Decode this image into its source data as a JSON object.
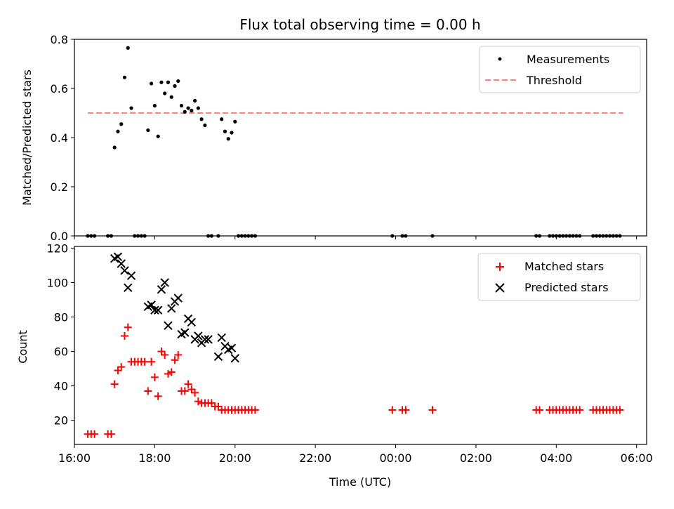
{
  "chart_data": [
    {
      "type": "scatter",
      "title": "Flux total observing time = 0.00 h",
      "xlabel": "",
      "ylabel": "Matched/Predicted stars",
      "xlim": [
        "16:00",
        "06:15"
      ],
      "ylim": [
        0,
        0.8
      ],
      "yticks": [
        "0.0",
        "0.2",
        "0.4",
        "0.6",
        "0.8"
      ],
      "legend_position": "top-right",
      "series": [
        {
          "name": "Measurements",
          "kind": "points",
          "color": "#000000",
          "x": [
            "16:20",
            "16:25",
            "16:30",
            "16:50",
            "16:55",
            "17:00",
            "17:05",
            "17:10",
            "17:15",
            "17:20",
            "17:25",
            "17:30",
            "17:35",
            "17:40",
            "17:45",
            "17:50",
            "17:55",
            "18:00",
            "18:05",
            "18:10",
            "18:15",
            "18:20",
            "18:25",
            "18:30",
            "18:35",
            "18:40",
            "18:45",
            "18:50",
            "18:55",
            "19:00",
            "19:05",
            "19:10",
            "19:15",
            "19:20",
            "19:25",
            "19:35",
            "19:40",
            "19:45",
            "19:50",
            "19:55",
            "20:00",
            "20:05",
            "20:10",
            "20:15",
            "20:20",
            "20:25",
            "20:30",
            "23:55",
            "00:10",
            "00:15",
            "00:55",
            "03:30",
            "03:35",
            "03:50",
            "03:55",
            "04:00",
            "04:05",
            "04:10",
            "04:15",
            "04:20",
            "04:25",
            "04:30",
            "04:35",
            "04:55",
            "05:00",
            "05:05",
            "05:10",
            "05:15",
            "05:20",
            "05:25",
            "05:30",
            "05:35"
          ],
          "y": [
            0,
            0,
            0,
            0,
            0,
            0.36,
            0.425,
            0.455,
            0.645,
            0.765,
            0.52,
            0,
            0,
            0,
            0,
            0.43,
            0.62,
            0.53,
            0.405,
            0.625,
            0.58,
            0.625,
            0.565,
            0.61,
            0.63,
            0.53,
            0.505,
            0.52,
            0.51,
            0.55,
            0.52,
            0.475,
            0.45,
            0,
            0,
            0,
            0.475,
            0.425,
            0.395,
            0.42,
            0.465,
            0,
            0,
            0,
            0,
            0,
            0,
            0,
            0,
            0,
            0,
            0,
            0,
            0,
            0,
            0,
            0,
            0,
            0,
            0,
            0,
            0,
            0,
            0,
            0,
            0,
            0,
            0,
            0,
            0,
            0,
            0
          ]
        },
        {
          "name": "Threshold",
          "kind": "dashed-line",
          "color": "#ff7f7f",
          "x": [
            "16:20",
            "05:40"
          ],
          "y": [
            0.5,
            0.5
          ]
        }
      ]
    },
    {
      "type": "scatter",
      "title": "",
      "xlabel": "Time (UTC)",
      "ylabel": "Count",
      "xlim": [
        "16:00",
        "06:15"
      ],
      "ylim": [
        6,
        121
      ],
      "xticks": [
        "16:00",
        "18:00",
        "20:00",
        "22:00",
        "00:00",
        "02:00",
        "04:00",
        "06:00"
      ],
      "yticks": [
        "20",
        "40",
        "60",
        "80",
        "100",
        "120"
      ],
      "legend_position": "top-right",
      "series": [
        {
          "name": "Matched stars",
          "marker": "plus",
          "color": "#ff0000",
          "x": [
            "16:20",
            "16:25",
            "16:30",
            "16:50",
            "16:55",
            "17:00",
            "17:05",
            "17:10",
            "17:15",
            "17:20",
            "17:25",
            "17:30",
            "17:35",
            "17:40",
            "17:45",
            "17:50",
            "17:55",
            "18:00",
            "18:05",
            "18:10",
            "18:15",
            "18:20",
            "18:25",
            "18:30",
            "18:35",
            "18:40",
            "18:45",
            "18:50",
            "18:55",
            "19:00",
            "19:05",
            "19:10",
            "19:15",
            "19:20",
            "19:25",
            "19:30",
            "19:35",
            "19:40",
            "19:45",
            "19:50",
            "19:55",
            "20:00",
            "20:05",
            "20:10",
            "20:15",
            "20:20",
            "20:25",
            "20:30",
            "23:55",
            "00:10",
            "00:15",
            "00:55",
            "03:30",
            "03:35",
            "03:50",
            "03:55",
            "04:00",
            "04:05",
            "04:10",
            "04:15",
            "04:20",
            "04:25",
            "04:30",
            "04:35",
            "04:55",
            "05:00",
            "05:05",
            "05:10",
            "05:15",
            "05:20",
            "05:25",
            "05:30",
            "05:35"
          ],
          "y": [
            12,
            12,
            12,
            12,
            12,
            41,
            49,
            51,
            69,
            74,
            54,
            54,
            54,
            54,
            54,
            37,
            54,
            45,
            34,
            60,
            58,
            47,
            48,
            55,
            58,
            37,
            37,
            41,
            38,
            36,
            31,
            30,
            30,
            30,
            30,
            28,
            28,
            26,
            26,
            26,
            26,
            26,
            26,
            26,
            26,
            26,
            26,
            26,
            26,
            26,
            26,
            26,
            26,
            26,
            26,
            26,
            26,
            26,
            26,
            26,
            26,
            26,
            26,
            26,
            26,
            26,
            26,
            26,
            26,
            26,
            26,
            26,
            26
          ]
        },
        {
          "name": "Predicted stars",
          "marker": "x",
          "color": "#000000",
          "x": [
            "17:00",
            "17:05",
            "17:10",
            "17:15",
            "17:20",
            "17:25",
            "17:50",
            "17:55",
            "18:00",
            "18:05",
            "18:10",
            "18:15",
            "18:20",
            "18:25",
            "18:30",
            "18:35",
            "18:40",
            "18:45",
            "18:50",
            "18:55",
            "19:00",
            "19:05",
            "19:10",
            "19:15",
            "19:20",
            "19:35",
            "19:40",
            "19:45",
            "19:50",
            "19:55",
            "20:00"
          ],
          "y": [
            114,
            115,
            111,
            107,
            97,
            104,
            86,
            87,
            84,
            84,
            96,
            100,
            75,
            85,
            89,
            91,
            70,
            71,
            79,
            77,
            67,
            69,
            65,
            67,
            67,
            57,
            68,
            63,
            61,
            62,
            56
          ]
        }
      ]
    }
  ]
}
